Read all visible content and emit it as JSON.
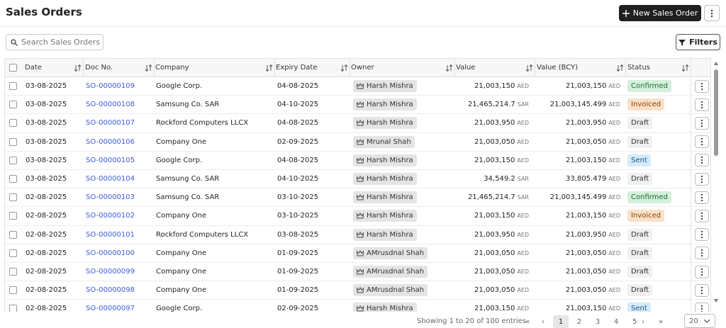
{
  "header": {
    "title": "Sales Orders",
    "new_button": "New Sales Order"
  },
  "toolbar": {
    "search_placeholder": "Search Sales Orders",
    "filters": "Filters"
  },
  "table": {
    "columns": [
      "Date",
      "Doc No.",
      "Company",
      "Expiry Date",
      "Owner",
      "Value",
      "Value (BCY)",
      "Status"
    ],
    "rows": [
      {
        "date": "03-08-2025",
        "doc_no": "SO-00000109",
        "company": "Google Corp.",
        "expiry": "04-08-2025",
        "owner": "Harsh Mishra",
        "value": "21,003,150",
        "value_currency": "AED",
        "value_bcy": "21,003,150",
        "bcy_currency": "AED",
        "status": "Confirmed",
        "status_bg": "#d3f0da",
        "status_fg": "#1f6b3a"
      },
      {
        "date": "03-08-2025",
        "doc_no": "SO-00000108",
        "company": "Samsung Co. SAR",
        "expiry": "04-10-2025",
        "owner": "Harsh Mishra",
        "value": "21,465,214.7",
        "value_currency": "SAR",
        "value_bcy": "21,003,145.499",
        "bcy_currency": "AED",
        "status": "Invoiced",
        "status_bg": "#fde0c4",
        "status_fg": "#7a4312"
      },
      {
        "date": "03-08-2025",
        "doc_no": "SO-00000107",
        "company": "Rockford Computers LLCX",
        "expiry": "04-08-2025",
        "owner": "Harsh Mishra",
        "value": "21,003,950",
        "value_currency": "AED",
        "value_bcy": "21,003,950",
        "bcy_currency": "AED",
        "status": "Draft",
        "status_bg": "#f0f0f0",
        "status_fg": "#333333"
      },
      {
        "date": "03-08-2025",
        "doc_no": "SO-00000106",
        "company": "Company One",
        "expiry": "02-09-2025",
        "owner": "Mrunal Shah",
        "value": "21,003,050",
        "value_currency": "AED",
        "value_bcy": "21,003,050",
        "bcy_currency": "AED",
        "status": "Draft",
        "status_bg": "#f0f0f0",
        "status_fg": "#333333"
      },
      {
        "date": "03-08-2025",
        "doc_no": "SO-00000105",
        "company": "Google Corp.",
        "expiry": "04-08-2025",
        "owner": "Harsh Mishra",
        "value": "21,003,150",
        "value_currency": "AED",
        "value_bcy": "21,003,150",
        "bcy_currency": "AED",
        "status": "Sent",
        "status_bg": "#d4ebfb",
        "status_fg": "#1b5784"
      },
      {
        "date": "03-08-2025",
        "doc_no": "SO-00000104",
        "company": "Samsung Co. SAR",
        "expiry": "04-10-2025",
        "owner": "Harsh Mishra",
        "value": "34,549.2",
        "value_currency": "SAR",
        "value_bcy": "33,805.479",
        "bcy_currency": "AED",
        "status": "Draft",
        "status_bg": "#f0f0f0",
        "status_fg": "#333333"
      },
      {
        "date": "02-08-2025",
        "doc_no": "SO-00000103",
        "company": "Samsung Co. SAR",
        "expiry": "03-10-2025",
        "owner": "Harsh Mishra",
        "value": "21,465,214.7",
        "value_currency": "SAR",
        "value_bcy": "21,003,145.499",
        "bcy_currency": "AED",
        "status": "Confirmed",
        "status_bg": "#d3f0da",
        "status_fg": "#1f6b3a"
      },
      {
        "date": "02-08-2025",
        "doc_no": "SO-00000102",
        "company": "Company One",
        "expiry": "03-10-2025",
        "owner": "Harsh Mishra",
        "value": "21,003,150",
        "value_currency": "AED",
        "value_bcy": "21,003,150",
        "bcy_currency": "AED",
        "status": "Invoiced",
        "status_bg": "#fde0c4",
        "status_fg": "#7a4312"
      },
      {
        "date": "02-08-2025",
        "doc_no": "SO-00000101",
        "company": "Rockford Computers LLCX",
        "expiry": "03-08-2025",
        "owner": "Harsh Mishra",
        "value": "21,003,950",
        "value_currency": "AED",
        "value_bcy": "21,003,950",
        "bcy_currency": "AED",
        "status": "Draft",
        "status_bg": "#f0f0f0",
        "status_fg": "#333333"
      },
      {
        "date": "02-08-2025",
        "doc_no": "SO-00000100",
        "company": "Company One",
        "expiry": "01-09-2025",
        "owner": "AMrusdnal Shah",
        "value": "21,003,050",
        "value_currency": "AED",
        "value_bcy": "21,003,050",
        "bcy_currency": "AED",
        "status": "Draft",
        "status_bg": "#f0f0f0",
        "status_fg": "#333333"
      },
      {
        "date": "02-08-2025",
        "doc_no": "SO-00000099",
        "company": "Company One",
        "expiry": "01-09-2025",
        "owner": "AMrusdnal Shah",
        "value": "21,003,050",
        "value_currency": "AED",
        "value_bcy": "21,003,050",
        "bcy_currency": "AED",
        "status": "Draft",
        "status_bg": "#f0f0f0",
        "status_fg": "#333333"
      },
      {
        "date": "02-08-2025",
        "doc_no": "SO-00000098",
        "company": "Company One",
        "expiry": "01-09-2025",
        "owner": "AMrusdnal Shah",
        "value": "21,003,050",
        "value_currency": "AED",
        "value_bcy": "21,003,050",
        "bcy_currency": "AED",
        "status": "Draft",
        "status_bg": "#f0f0f0",
        "status_fg": "#333333"
      },
      {
        "date": "02-08-2025",
        "doc_no": "SO-00000097",
        "company": "Google Corp.",
        "expiry": "02-09-2025",
        "owner": "Harsh Mishra",
        "value": "21,003,150",
        "value_currency": "AED",
        "value_bcy": "21,003,150",
        "bcy_currency": "AED",
        "status": "Sent",
        "status_bg": "#d4ebfb",
        "status_fg": "#1b5784"
      }
    ]
  },
  "pagination": {
    "summary": "Showing 1 to 20 of 100 entries",
    "first": "«",
    "prev": "‹",
    "pages": [
      "1",
      "2",
      "3",
      "4",
      "5"
    ],
    "next": "›",
    "last": "»",
    "page_size": "20"
  }
}
